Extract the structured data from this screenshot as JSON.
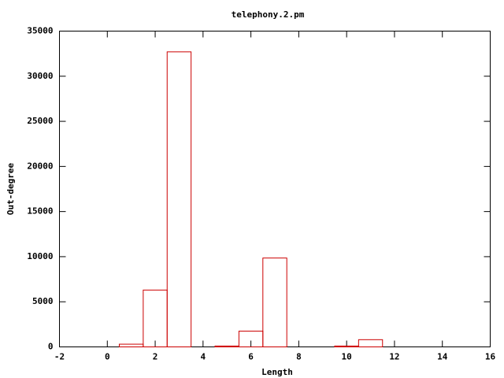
{
  "chart_data": {
    "type": "bar",
    "title": "telephony.2.pm",
    "x_label": "Length",
    "y_label": "Out-degree",
    "x": [
      1,
      2,
      3,
      5,
      6,
      7,
      10,
      11
    ],
    "values": [
      300,
      6300,
      32700,
      100,
      1750,
      9850,
      100,
      800
    ],
    "color": "#cc0000",
    "xlim": [
      -2,
      16
    ],
    "xticks": [
      -2,
      0,
      2,
      4,
      6,
      8,
      10,
      12,
      14,
      16
    ],
    "ylim": [
      0,
      35000
    ],
    "yticks": [
      0,
      5000,
      10000,
      15000,
      20000,
      25000,
      30000,
      35000
    ]
  }
}
